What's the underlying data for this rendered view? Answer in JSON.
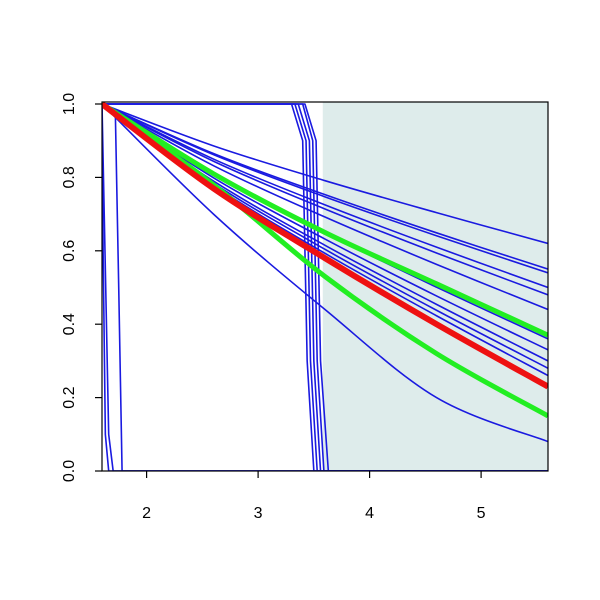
{
  "chart_data": {
    "type": "line",
    "xlim": [
      1.6,
      5.6
    ],
    "ylim": [
      0,
      1
    ],
    "xticks": [
      2,
      3,
      4,
      5
    ],
    "yticks": [
      {
        "value": 0,
        "label": "0.0"
      },
      {
        "value": 0.2,
        "label": "0.2"
      },
      {
        "value": 0.4,
        "label": "0.4"
      },
      {
        "value": 0.6,
        "label": "0.6"
      },
      {
        "value": 0.8,
        "label": "0.8"
      },
      {
        "value": 1,
        "label": "1.0"
      }
    ],
    "shade_x": [
      3.58,
      5.6
    ],
    "shade_color": "#deeceb",
    "series": [
      {
        "color": "#1a1ae0",
        "width": 1.6,
        "smooth": true,
        "x": [
          1.6,
          2.6,
          3.6,
          4.6,
          5.6
        ],
        "values": [
          1,
          0.886,
          0.791,
          0.704,
          0.62
        ]
      },
      {
        "color": "#1a1ae0",
        "width": 1.6,
        "smooth": true,
        "x": [
          1.6,
          2.6,
          3.6,
          4.6,
          5.6
        ],
        "values": [
          1,
          0.865,
          0.753,
          0.649,
          0.55
        ]
      },
      {
        "color": "#1a1ae0",
        "width": 1.6,
        "smooth": true,
        "x": [
          1.6,
          2.6,
          3.6,
          4.6,
          5.6
        ],
        "values": [
          1,
          0.862,
          0.747,
          0.641,
          0.54
        ]
      },
      {
        "color": "#1a1ae0",
        "width": 1.6,
        "smooth": true,
        "x": [
          1.6,
          2.6,
          3.6,
          4.6,
          5.6
        ],
        "values": [
          1,
          0.85,
          0.725,
          0.61,
          0.5
        ]
      },
      {
        "color": "#1a1ae0",
        "width": 1.6,
        "smooth": true,
        "x": [
          1.6,
          2.6,
          3.6,
          4.6,
          5.6
        ],
        "values": [
          1,
          0.844,
          0.714,
          0.594,
          0.48
        ]
      },
      {
        "color": "#1a1ae0",
        "width": 1.6,
        "smooth": true,
        "x": [
          1.6,
          2.6,
          3.6,
          4.6,
          5.6
        ],
        "values": [
          1,
          0.832,
          0.692,
          0.563,
          0.44
        ]
      },
      {
        "color": "#1a1ae0",
        "width": 1.6,
        "smooth": true,
        "x": [
          1.6,
          2.6,
          3.6,
          4.6,
          5.6
        ],
        "values": [
          1,
          0.808,
          0.648,
          0.501,
          0.36
        ]
      },
      {
        "color": "#1a1ae0",
        "width": 1.6,
        "smooth": true,
        "x": [
          1.6,
          2.6,
          3.6,
          4.6,
          5.6
        ],
        "values": [
          1,
          0.799,
          0.632,
          0.477,
          0.33
        ]
      },
      {
        "color": "#1a1ae0",
        "width": 1.6,
        "smooth": true,
        "x": [
          1.6,
          2.6,
          3.6,
          4.6,
          5.6
        ],
        "values": [
          1,
          0.79,
          0.615,
          0.454,
          0.3
        ]
      },
      {
        "color": "#1a1ae0",
        "width": 1.6,
        "smooth": true,
        "x": [
          1.6,
          2.6,
          3.6,
          4.6,
          5.6
        ],
        "values": [
          1,
          0.784,
          0.604,
          0.438,
          0.28
        ]
      },
      {
        "color": "#1a1ae0",
        "width": 1.6,
        "smooth": true,
        "x": [
          1.6,
          2.6,
          3.6,
          4.6,
          5.6
        ],
        "values": [
          1,
          0.778,
          0.593,
          0.423,
          0.26
        ]
      },
      {
        "color": "#1a1ae0",
        "width": 1.6,
        "smooth": true,
        "x": [
          1.6,
          2.6,
          3.6,
          4.6,
          5.6
        ],
        "values": [
          1,
          0.769,
          0.577,
          0.399,
          0.23
        ]
      },
      {
        "color": "#1a1ae0",
        "width": 1.6,
        "smooth": true,
        "x": [
          1.6,
          2.6,
          3.6,
          4.6,
          5.6
        ],
        "values": [
          1,
          0.7,
          0.44,
          0.2,
          0.08
        ]
      },
      {
        "color": "#1a1ae0",
        "width": 1.6,
        "smooth": false,
        "x": [
          1.6,
          1.61,
          1.63,
          1.66,
          5.6
        ],
        "values": [
          1,
          0.6,
          0.1,
          0,
          0
        ]
      },
      {
        "color": "#1a1ae0",
        "width": 1.6,
        "smooth": false,
        "x": [
          1.6,
          1.62,
          1.66,
          1.7,
          5.6
        ],
        "values": [
          1,
          0.7,
          0.1,
          0,
          0
        ]
      },
      {
        "color": "#1a1ae0",
        "width": 1.6,
        "smooth": false,
        "x": [
          1.6,
          1.72,
          1.75,
          1.78,
          5.6
        ],
        "values": [
          1,
          0.97,
          0.5,
          0,
          0
        ]
      },
      {
        "color": "#1a1ae0",
        "width": 1.6,
        "smooth": false,
        "x": [
          1.6,
          3.3,
          3.4,
          3.44,
          3.5,
          5.6
        ],
        "values": [
          1,
          1,
          0.9,
          0.3,
          0,
          0
        ]
      },
      {
        "color": "#1a1ae0",
        "width": 1.6,
        "smooth": false,
        "x": [
          1.6,
          3.33,
          3.43,
          3.47,
          3.53,
          5.6
        ],
        "values": [
          1,
          1,
          0.9,
          0.3,
          0,
          0
        ]
      },
      {
        "color": "#1a1ae0",
        "width": 1.6,
        "smooth": false,
        "x": [
          1.6,
          3.36,
          3.46,
          3.5,
          3.56,
          5.6
        ],
        "values": [
          1,
          1,
          0.9,
          0.3,
          0,
          0
        ]
      },
      {
        "color": "#1a1ae0",
        "width": 1.6,
        "smooth": false,
        "x": [
          1.6,
          3.4,
          3.49,
          3.53,
          3.59,
          5.6
        ],
        "values": [
          1,
          1,
          0.9,
          0.3,
          0,
          0
        ]
      },
      {
        "color": "#1a1ae0",
        "width": 1.6,
        "smooth": false,
        "x": [
          1.6,
          3.42,
          3.52,
          3.56,
          3.63,
          5.6
        ],
        "values": [
          1,
          1,
          0.9,
          0.3,
          0,
          0
        ]
      },
      {
        "color": "#22ee22",
        "width": 5,
        "smooth": true,
        "x": [
          1.6,
          2.6,
          3.6,
          4.6,
          5.6
        ],
        "values": [
          1,
          0.81,
          0.65,
          0.51,
          0.37
        ]
      },
      {
        "color": "#22ee22",
        "width": 5,
        "smooth": true,
        "x": [
          1.6,
          2.6,
          3.6,
          4.6,
          5.6
        ],
        "values": [
          1,
          0.78,
          0.53,
          0.32,
          0.15
        ]
      },
      {
        "color": "#ee1111",
        "width": 6,
        "smooth": true,
        "x": [
          1.6,
          2.6,
          3.6,
          4.6,
          5.6
        ],
        "values": [
          1,
          0.77,
          0.58,
          0.4,
          0.23
        ]
      }
    ]
  }
}
